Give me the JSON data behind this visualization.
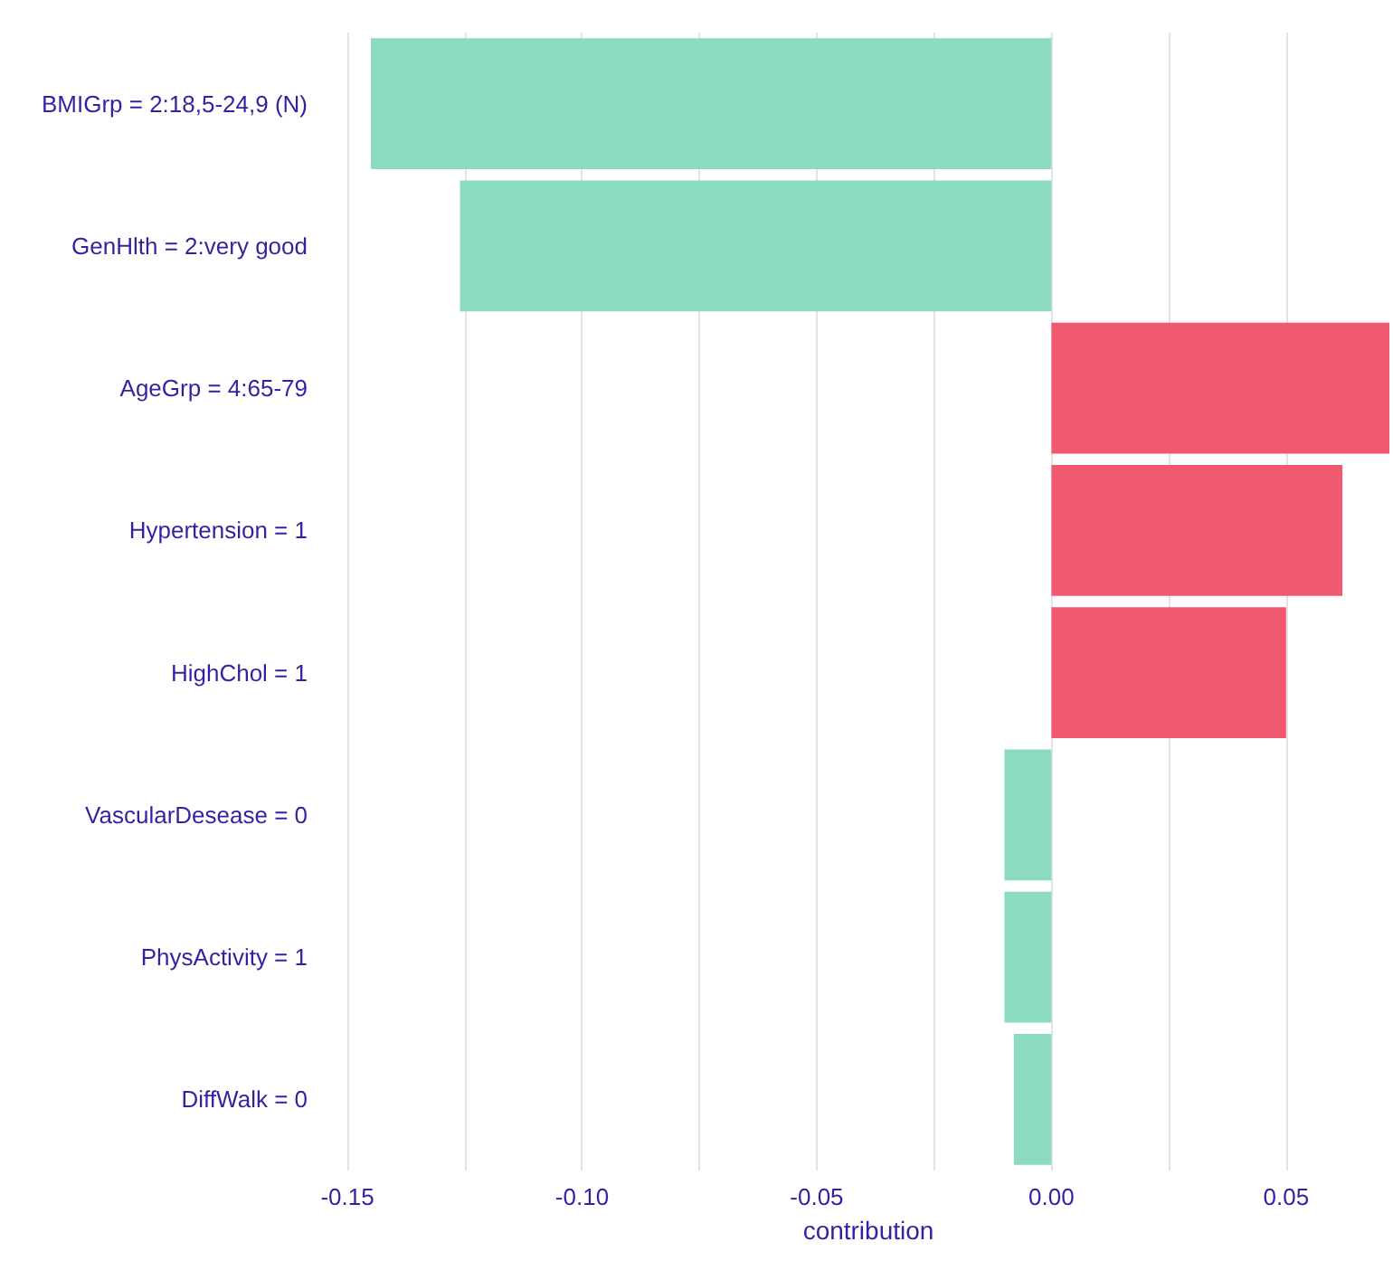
{
  "chart_data": {
    "type": "bar",
    "orientation": "horizontal",
    "xlabel": "contribution",
    "categories": [
      "BMIGrp = 2:18,5-24,9 (N)",
      "GenHlth = 2:very good",
      "AgeGrp = 4:65-79",
      "Hypertension = 1",
      "HighChol = 1",
      "VascularDesease = 0",
      "PhysActivity = 1",
      "DiffWalk = 0"
    ],
    "values": [
      -0.145,
      -0.126,
      0.072,
      0.062,
      0.05,
      -0.01,
      -0.01,
      -0.008
    ],
    "colors": [
      "#8bdcbe",
      "#8bdcbe",
      "#f05a71",
      "#f05a71",
      "#f05a71",
      "#8bdcbe",
      "#8bdcbe",
      "#8bdcbe"
    ],
    "xlim": [
      -0.15,
      0.072
    ],
    "xticks": [
      {
        "value": -0.15,
        "label": "-0.15"
      },
      {
        "value": -0.125,
        "label": null
      },
      {
        "value": -0.1,
        "label": "-0.10"
      },
      {
        "value": -0.075,
        "label": null
      },
      {
        "value": -0.05,
        "label": "-0.05"
      },
      {
        "value": -0.025,
        "label": null
      },
      {
        "value": 0,
        "label": "0.00"
      },
      {
        "value": 0.025,
        "label": null
      },
      {
        "value": 0.05,
        "label": "0.05"
      }
    ],
    "grid": "x"
  }
}
